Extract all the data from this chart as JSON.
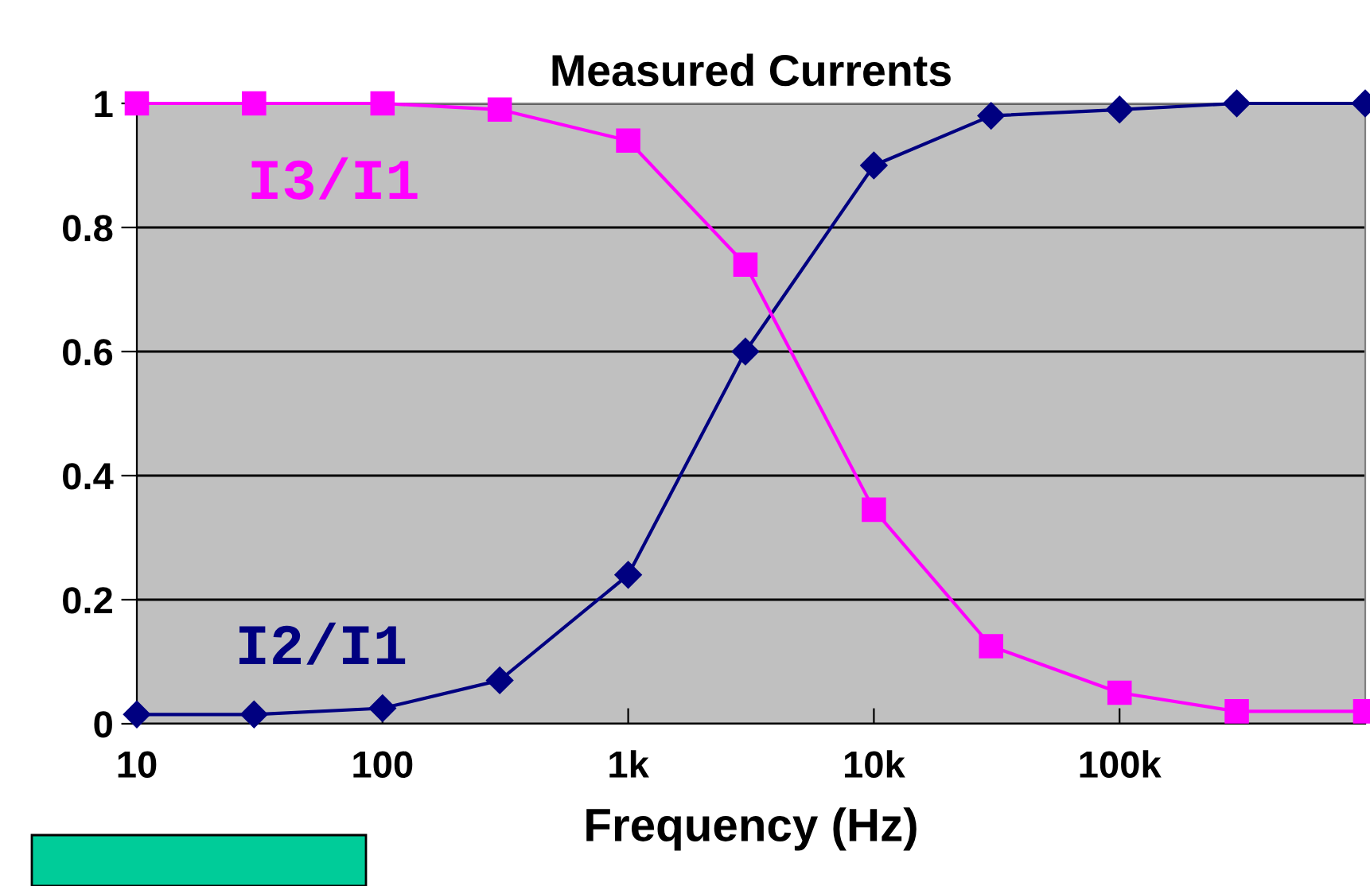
{
  "chart_data": {
    "type": "line",
    "title": "Measured Currents",
    "xlabel": "Frequency (Hz)",
    "log": "x",
    "x": [
      10,
      30,
      100,
      300,
      1000,
      3000,
      10000,
      30000,
      100000,
      300000,
      1000000
    ],
    "xlim": [
      10,
      1000000
    ],
    "xticks": [
      {
        "value": 10,
        "label": "10"
      },
      {
        "value": 100,
        "label": "100"
      },
      {
        "value": 1000,
        "label": "1k"
      },
      {
        "value": 10000,
        "label": "10k"
      },
      {
        "value": 100000,
        "label": "100k"
      },
      {
        "value": 1000000,
        "label": null
      }
    ],
    "ylim": [
      0,
      1
    ],
    "yticks": [
      0,
      0.2,
      0.4,
      0.6,
      0.8,
      1
    ],
    "grid": "y",
    "legend": false,
    "line_style": "solid",
    "series": [
      {
        "name": "I2/I1",
        "color": "#000080",
        "marker": "diamond",
        "values": [
          0.015,
          0.015,
          0.025,
          0.07,
          0.24,
          0.6,
          0.9,
          0.98,
          0.99,
          1,
          1
        ]
      },
      {
        "name": "I3/I1",
        "color": "#ff00ff",
        "marker": "square",
        "values": [
          1,
          1,
          1,
          0.99,
          0.94,
          0.74,
          0.345,
          0.125,
          0.05,
          0.02,
          0.02
        ]
      }
    ]
  }
}
